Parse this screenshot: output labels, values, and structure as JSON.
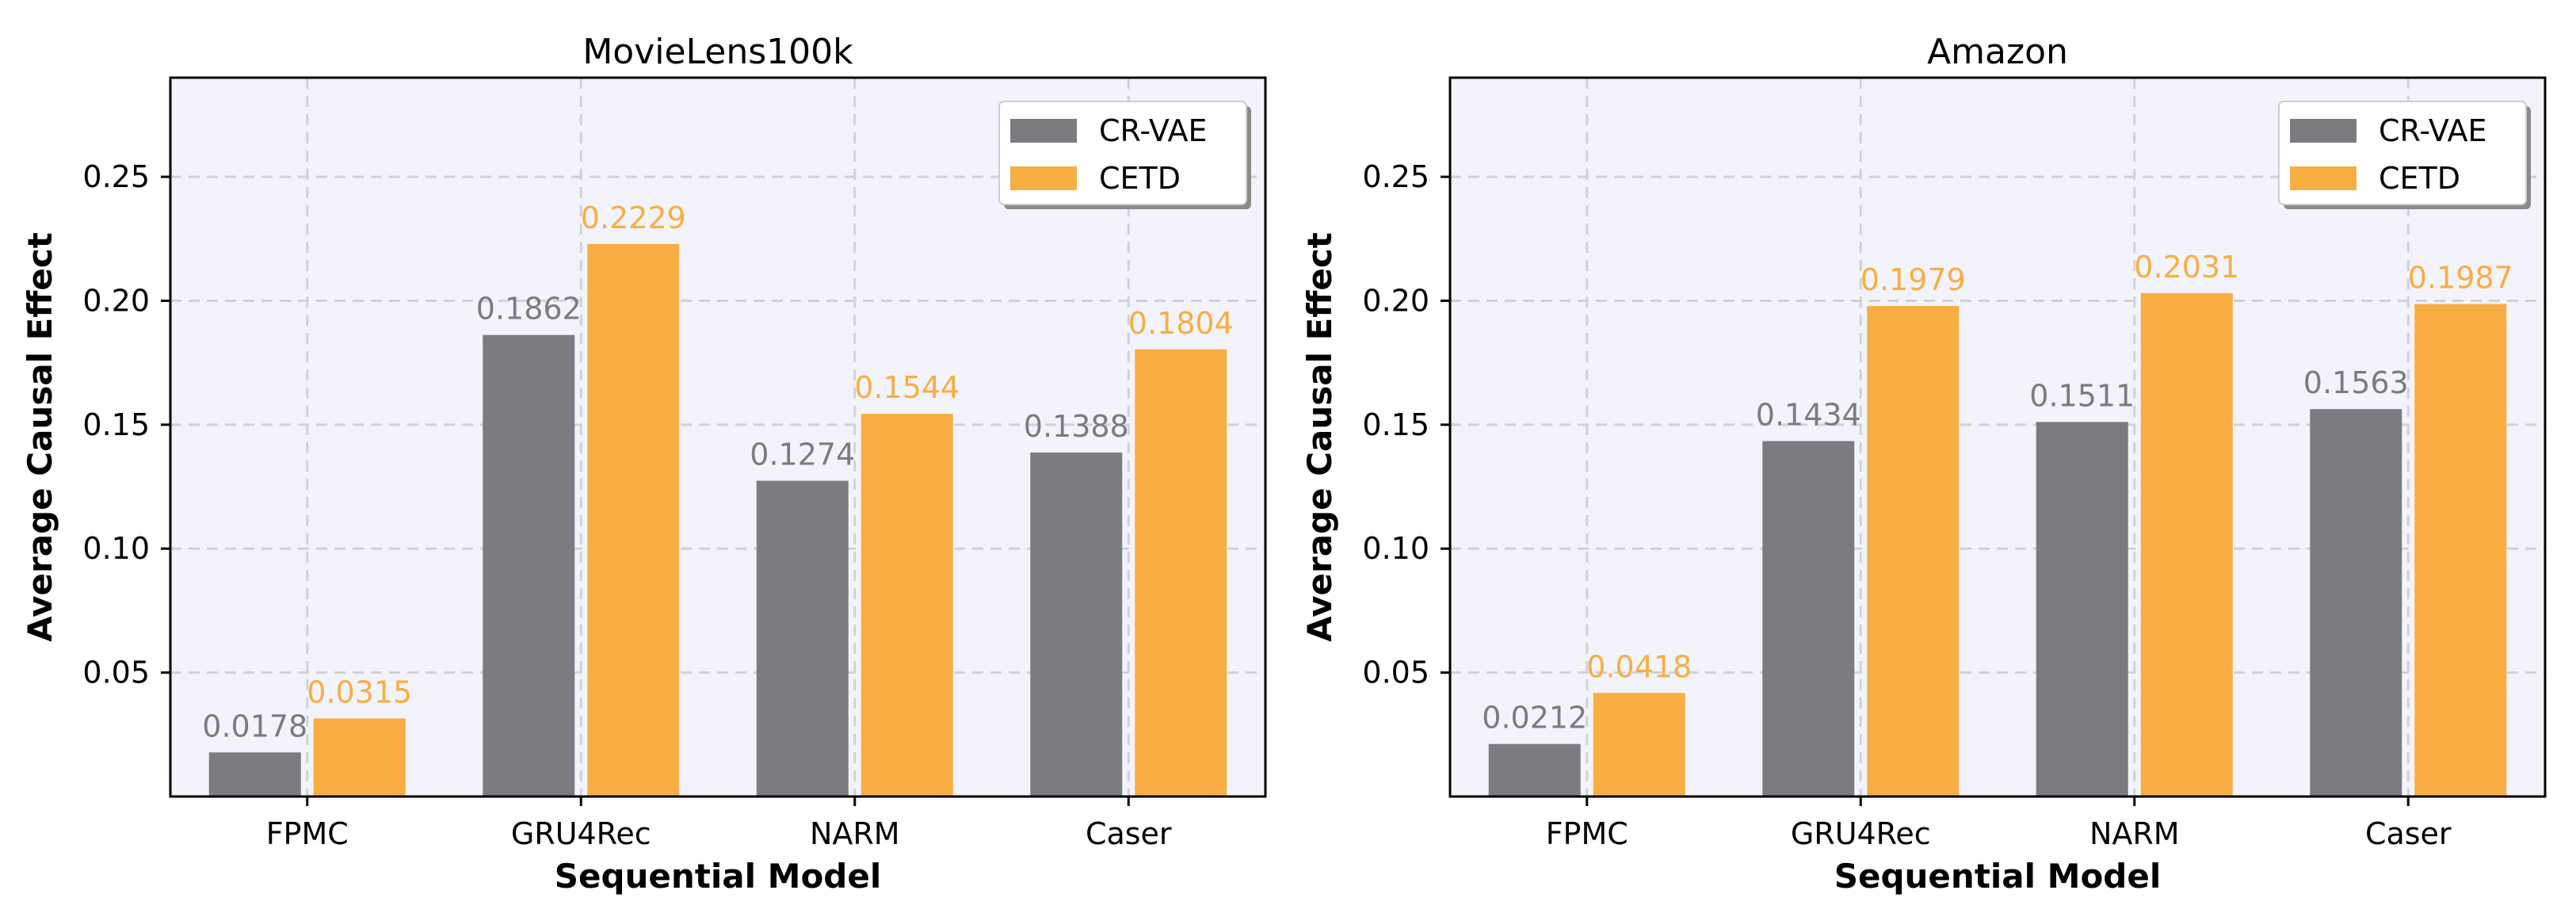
{
  "chart_data": [
    {
      "type": "bar",
      "title": "MovieLens100k",
      "xlabel": "Sequential Model",
      "ylabel": "Average Causal Effect",
      "categories": [
        "FPMC",
        "GRU4Rec",
        "NARM",
        "Caser"
      ],
      "ylim": [
        0,
        0.29
      ],
      "yticks": [
        0.05,
        0.1,
        0.15,
        0.2,
        0.25
      ],
      "ytick_labels": [
        "0.05",
        "0.10",
        "0.15",
        "0.20",
        "0.25"
      ],
      "grid": true,
      "legend_position": "top-right",
      "series": [
        {
          "name": "CR-VAE",
          "color": "#7b7c80",
          "values": [
            0.0178,
            0.1862,
            0.1274,
            0.1388
          ],
          "labels": [
            "0.0178",
            "0.1862",
            "0.1274",
            "0.1388"
          ]
        },
        {
          "name": "CETD",
          "color": "#f8ae42",
          "values": [
            0.0315,
            0.2229,
            0.1544,
            0.1804
          ],
          "labels": [
            "0.0315",
            "0.2229",
            "0.1544",
            "0.1804"
          ]
        }
      ]
    },
    {
      "type": "bar",
      "title": "Amazon",
      "xlabel": "Sequential Model",
      "ylabel": "Average Causal Effect",
      "categories": [
        "FPMC",
        "GRU4Rec",
        "NARM",
        "Caser"
      ],
      "ylim": [
        0,
        0.29
      ],
      "yticks": [
        0.05,
        0.1,
        0.15,
        0.2,
        0.25
      ],
      "ytick_labels": [
        "0.05",
        "0.10",
        "0.15",
        "0.20",
        "0.25"
      ],
      "grid": true,
      "legend_position": "top-right",
      "series": [
        {
          "name": "CR-VAE",
          "color": "#7b7c80",
          "values": [
            0.0212,
            0.1434,
            0.1511,
            0.1563
          ],
          "labels": [
            "0.0212",
            "0.1434",
            "0.1511",
            "0.1563"
          ]
        },
        {
          "name": "CETD",
          "color": "#f8ae42",
          "values": [
            0.0418,
            0.1979,
            0.2031,
            0.1987
          ],
          "labels": [
            "0.0418",
            "0.1979",
            "0.2031",
            "0.1987"
          ]
        }
      ]
    }
  ]
}
